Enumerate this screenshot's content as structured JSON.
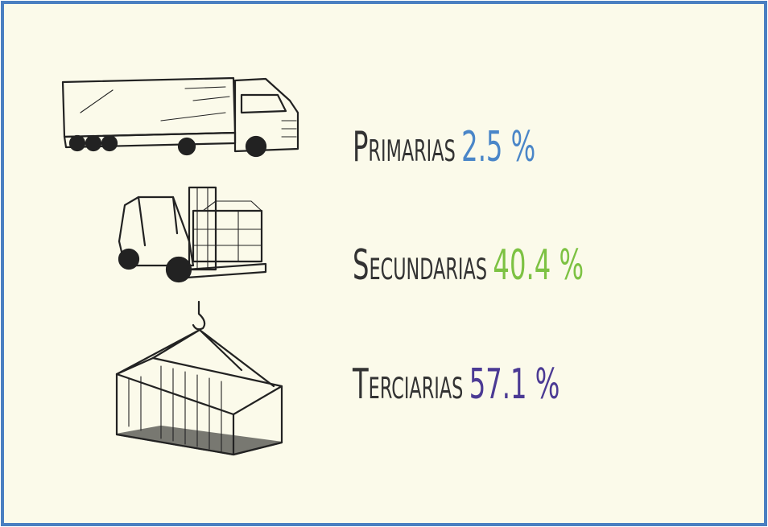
{
  "items": [
    {
      "label": "Primarias",
      "value": "2.5 %",
      "color": "#4a86c8"
    },
    {
      "label": "Secundarias",
      "value": "40.4 %",
      "color": "#7dc243"
    },
    {
      "label": "Terciarias",
      "value": "57.1 %",
      "color": "#4b3a94"
    }
  ]
}
